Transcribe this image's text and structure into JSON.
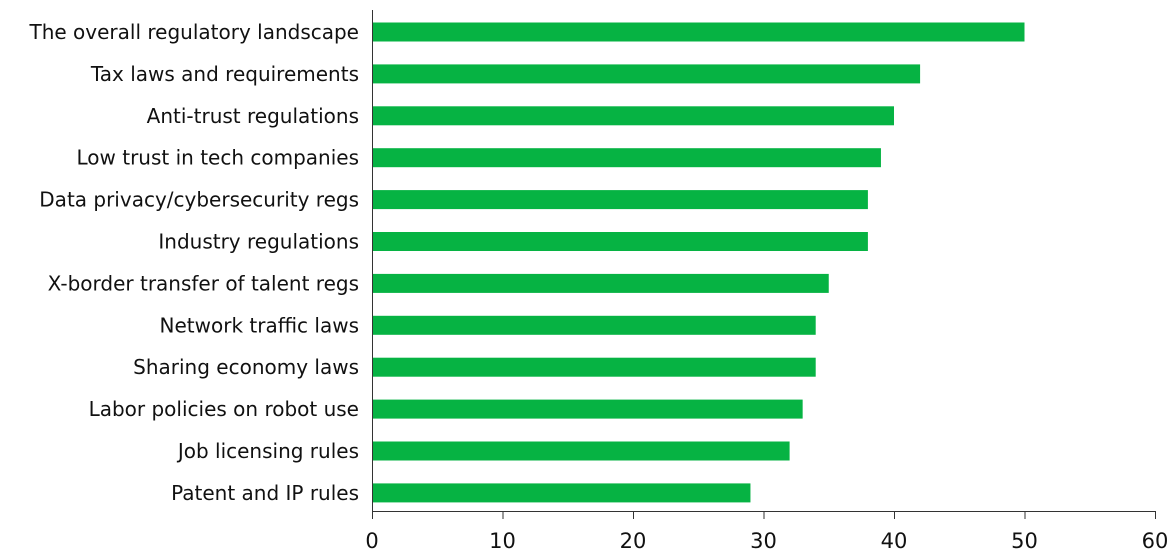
{
  "chart_data": {
    "type": "bar",
    "orientation": "horizontal",
    "title": "",
    "xlabel": "",
    "ylabel": "",
    "categories": [
      "The overall regulatory landscape",
      "Tax laws and requirements",
      "Anti-trust regulations",
      "Low trust in tech companies",
      "Data privacy/cybersecurity regs",
      "Industry regulations",
      "X-border transfer of talent regs",
      "Network traffic laws",
      "Sharing economy laws",
      "Labor policies on robot use",
      "Job licensing rules",
      "Patent and IP rules"
    ],
    "values": [
      50,
      42,
      40,
      39,
      38,
      38,
      35,
      34,
      34,
      33,
      32,
      29
    ],
    "xlim": [
      0,
      60
    ],
    "xticks": [
      "0",
      "10",
      "20",
      "30",
      "40",
      "50",
      "60"
    ],
    "bar_color": "#06b343",
    "grid": false,
    "legend": "none"
  }
}
